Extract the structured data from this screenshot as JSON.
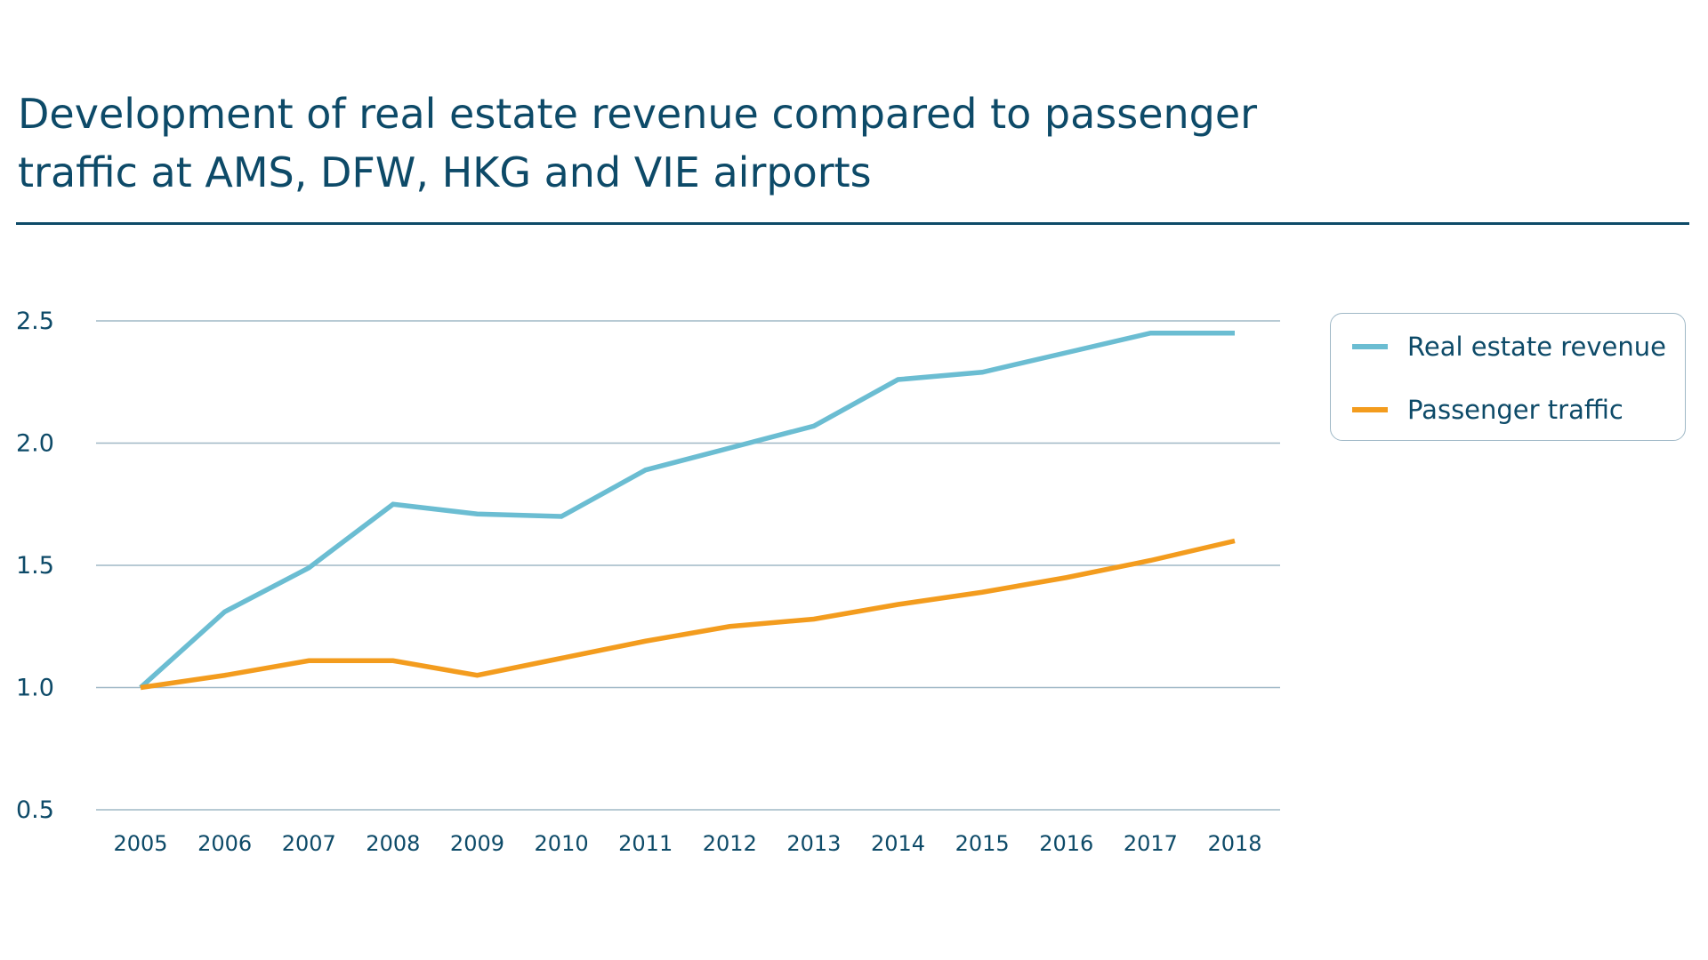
{
  "chart_data": {
    "type": "line",
    "title": "Development of real estate revenue compared to passenger traffic at AMS, DFW, HKG and VIE airports",
    "xlabel": "",
    "ylabel": "",
    "categories": [
      "2005",
      "2006",
      "2007",
      "2008",
      "2009",
      "2010",
      "2011",
      "2012",
      "2013",
      "2014",
      "2015",
      "2016",
      "2017",
      "2018"
    ],
    "yticks": [
      "0.5",
      "1.0",
      "1.5",
      "2.0",
      "2.5"
    ],
    "ytick_values": [
      0.5,
      1.0,
      1.5,
      2.0,
      2.5
    ],
    "ylim": [
      0.5,
      2.5
    ],
    "grid": true,
    "legend_position": "right",
    "series": [
      {
        "name": "Real estate revenue",
        "color": "#6bbdd2",
        "values": [
          1.0,
          1.31,
          1.49,
          1.75,
          1.71,
          1.7,
          1.89,
          1.98,
          2.07,
          2.26,
          2.29,
          2.37,
          2.45,
          2.45
        ]
      },
      {
        "name": "Passenger traffic",
        "color": "#f39c1e",
        "values": [
          1.0,
          1.05,
          1.11,
          1.11,
          1.05,
          1.12,
          1.19,
          1.25,
          1.28,
          1.34,
          1.39,
          1.45,
          1.52,
          1.6
        ]
      }
    ]
  },
  "colors": {
    "title": "#0d4a68",
    "grid": "#9fb8c6"
  }
}
